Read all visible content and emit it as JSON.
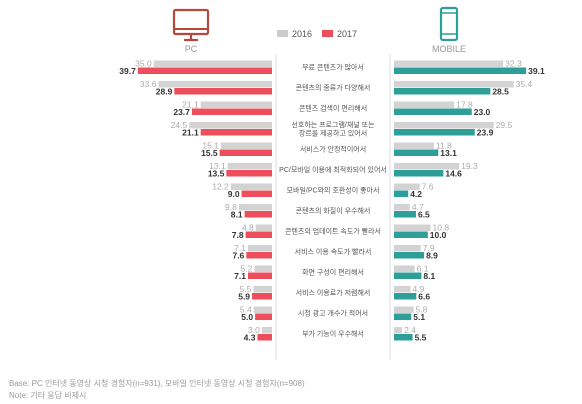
{
  "header": {
    "pc_label": "PC",
    "mobile_label": "MOBILE",
    "pc_icon": "monitor-icon",
    "mobile_icon": "smartphone-icon"
  },
  "legend": {
    "items": [
      {
        "label": "2016",
        "color": "#cccccc"
      },
      {
        "label": "2017",
        "color": "#ee4d5b"
      }
    ]
  },
  "colors": {
    "pc_2016": "#d3d3d3",
    "pc_2017": "#ee4d5b",
    "mobile_2016": "#d3d3d3",
    "mobile_2017": "#2e9e98",
    "pc_icon": "#b8483d",
    "mobile_icon": "#2e9e98",
    "value_2016": "#aaaaaa",
    "value_2017": "#333333"
  },
  "chart_data": {
    "type": "bar",
    "categories": [
      "무료 콘텐츠가 많아서",
      "콘텐츠의 종류가 다양해서",
      "콘텐츠 검색이 편리해서",
      "선호하는 프로그램/채널 또는 장르를 제공하고 있어서",
      "서비스가 안정적이어서",
      "PC/모바일 이용에 최적화되어 있어서",
      "모바일/PC와의 호환성이 좋아서",
      "콘텐츠의 화질이 우수해서",
      "콘텐츠의 업데이트 속도가 빨라서",
      "서비스 이용 속도가 빨라서",
      "화면 구성이 편리해서",
      "서비스 이용료가 저렴해서",
      "시청 광고 개수가 적어서",
      "부가 기능이 우수해서"
    ],
    "category_lines": [
      [
        "무료 콘텐츠가 많아서"
      ],
      [
        "콘텐츠의 종류가 다양해서"
      ],
      [
        "콘텐츠 검색이 편리해서"
      ],
      [
        "선호하는 프로그램/채널 또는",
        "장르를 제공하고 있어서"
      ],
      [
        "서비스가 안정적이어서"
      ],
      [
        "PC/모바일 이용에 최적화되어 있어서"
      ],
      [
        "모바일/PC와의 호환성이 좋아서"
      ],
      [
        "콘텐츠의 화질이 우수해서"
      ],
      [
        "콘텐츠의 업데이트 속도가 빨라서"
      ],
      [
        "서비스 이용 속도가 빨라서"
      ],
      [
        "화면 구성이 편리해서"
      ],
      [
        "서비스 이용료가 저렴해서"
      ],
      [
        "시청 광고 개수가 적어서"
      ],
      [
        "부가 기능이 우수해서"
      ]
    ],
    "panels": [
      {
        "name": "PC",
        "series": [
          {
            "name": "2016",
            "values": [
              35.0,
              33.6,
              21.1,
              24.5,
              15.1,
              13.1,
              12.2,
              9.8,
              4.8,
              7.1,
              5.2,
              5.5,
              5.4,
              3.0
            ]
          },
          {
            "name": "2017",
            "values": [
              39.7,
              28.9,
              23.7,
              21.1,
              15.5,
              13.5,
              9.0,
              8.1,
              7.8,
              7.6,
              7.1,
              5.9,
              5.0,
              4.3
            ]
          }
        ]
      },
      {
        "name": "MOBILE",
        "series": [
          {
            "name": "2016",
            "values": [
              32.3,
              35.4,
              17.8,
              29.5,
              11.8,
              19.3,
              7.6,
              4.7,
              10.8,
              7.9,
              6.1,
              4.9,
              5.8,
              2.4
            ]
          },
          {
            "name": "2017",
            "values": [
              39.1,
              28.5,
              23.0,
              23.9,
              13.1,
              14.6,
              4.2,
              6.5,
              10.0,
              8.9,
              8.1,
              6.6,
              5.1,
              5.5
            ]
          }
        ]
      }
    ],
    "xlim": [
      0,
      42
    ],
    "grid": false,
    "legend": "top-center"
  },
  "notes": {
    "base": "Base: PC 인터넷 동영상 시청 경험자(n=931), 모바일 인터넷 동영상 시청 경험자(n=908)",
    "note": "Note: 기타 응답 비제시"
  }
}
